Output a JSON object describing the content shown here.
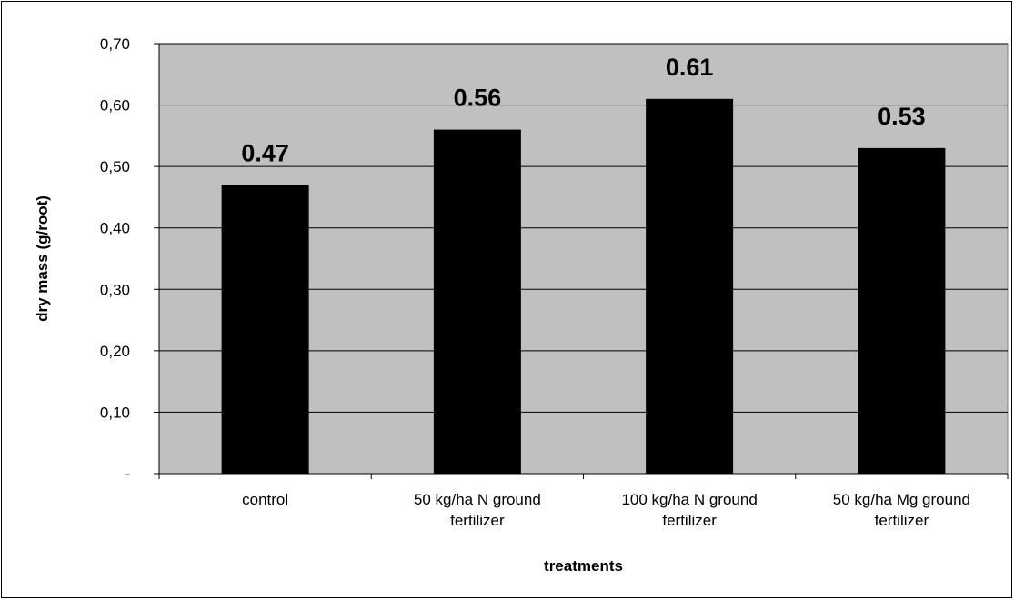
{
  "chart_data": {
    "type": "bar",
    "title": "",
    "xlabel": "treatments",
    "ylabel": "dry mass (g/root)",
    "categories": [
      [
        "control"
      ],
      [
        "50 kg/ha N ground",
        "fertilizer"
      ],
      [
        "100 kg/ha N ground",
        "fertilizer"
      ],
      [
        "50 kg/ha Mg ground",
        "fertilizer"
      ]
    ],
    "values": [
      0.47,
      0.56,
      0.61,
      0.53
    ],
    "data_labels": [
      "0.47",
      "0.56",
      "0.61",
      "0.53"
    ],
    "ylim": [
      0,
      0.7
    ],
    "y_ticks": [
      0,
      0.1,
      0.2,
      0.3,
      0.4,
      0.5,
      0.6,
      0.7
    ],
    "y_tick_labels": [
      "-",
      "0,10",
      "0,20",
      "0,30",
      "0,40",
      "0,50",
      "0,60",
      "0,70"
    ],
    "grid": true,
    "legend": "none",
    "colors": {
      "plot_background": "#c0c0c0",
      "bar": "#000000",
      "gridline": "#000000"
    }
  }
}
